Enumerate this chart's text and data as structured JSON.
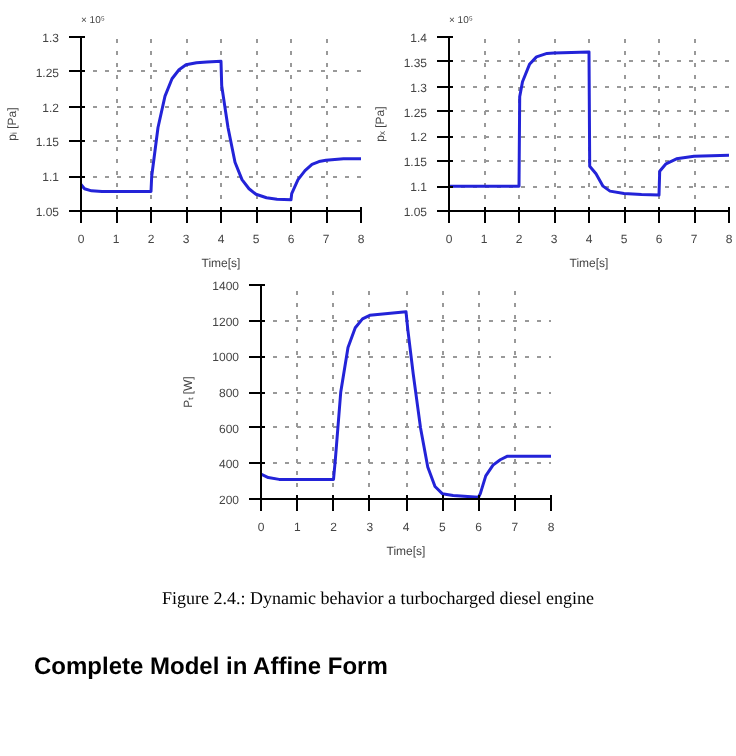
{
  "chart_data": [
    {
      "type": "line",
      "xlabel": "Time[s]",
      "ylabel": "pᵢ [Pa]",
      "annotations": [
        "× 10⁵"
      ],
      "grid": true,
      "xlim": [
        0,
        8
      ],
      "xticks": [
        0,
        1,
        2,
        3,
        4,
        5,
        6,
        7,
        8
      ],
      "ylim": [
        1.05,
        1.3
      ],
      "yticks": [
        1.05,
        1.1,
        1.15,
        1.2,
        1.25,
        1.3
      ],
      "series": [
        {
          "color": "#2323d8",
          "x": [
            0,
            0.1,
            0.3,
            0.6,
            1,
            2,
            2.02,
            2.2,
            2.4,
            2.6,
            2.8,
            3,
            3.3,
            3.6,
            4,
            4.02,
            4.2,
            4.4,
            4.6,
            4.8,
            5,
            5.3,
            5.6,
            6,
            6.02,
            6.2,
            6.4,
            6.6,
            6.8,
            7,
            7.5,
            8
          ],
          "values": [
            1.088,
            1.082,
            1.079,
            1.078,
            1.078,
            1.078,
            1.1,
            1.17,
            1.215,
            1.24,
            1.253,
            1.26,
            1.263,
            1.264,
            1.265,
            1.23,
            1.17,
            1.12,
            1.095,
            1.082,
            1.074,
            1.069,
            1.067,
            1.066,
            1.075,
            1.095,
            1.108,
            1.117,
            1.121,
            1.123,
            1.125,
            1.125
          ]
        }
      ]
    },
    {
      "type": "line",
      "xlabel": "Time[s]",
      "ylabel": "pₓ [Pa]",
      "annotations": [
        "× 10⁵"
      ],
      "grid": true,
      "xlim": [
        0,
        8
      ],
      "xticks": [
        0,
        1,
        2,
        3,
        4,
        5,
        6,
        7,
        8
      ],
      "ylim": [
        1.05,
        1.4
      ],
      "yticks": [
        1.05,
        1.1,
        1.15,
        1.2,
        1.25,
        1.3,
        1.35,
        1.4
      ],
      "series": [
        {
          "color": "#2323d8",
          "x": [
            0,
            2,
            2.02,
            2.1,
            2.3,
            2.5,
            2.8,
            3,
            4,
            4.02,
            4.2,
            4.4,
            4.6,
            5,
            5.5,
            6,
            6.02,
            6.2,
            6.5,
            7,
            8
          ],
          "values": [
            1.1,
            1.1,
            1.28,
            1.31,
            1.345,
            1.36,
            1.367,
            1.368,
            1.37,
            1.14,
            1.125,
            1.1,
            1.09,
            1.085,
            1.083,
            1.082,
            1.13,
            1.145,
            1.155,
            1.16,
            1.162
          ]
        }
      ]
    },
    {
      "type": "line",
      "xlabel": "Time[s]",
      "ylabel": "Pₜ [W]",
      "annotations": [
        "Figure 2.4.: Dynamic behavior a turbocharged diesel engine",
        "Complete Model in Affine Form"
      ],
      "grid": true,
      "xlim": [
        0,
        8
      ],
      "xticks": [
        0,
        1,
        2,
        3,
        4,
        5,
        6,
        7,
        8
      ],
      "ylim": [
        200,
        1400
      ],
      "yticks": [
        200,
        400,
        600,
        800,
        1000,
        1200,
        1400
      ],
      "series": [
        {
          "color": "#2323d8",
          "x": [
            0,
            0.2,
            0.5,
            1,
            2,
            2.05,
            2.2,
            2.4,
            2.6,
            2.8,
            3,
            3.5,
            4,
            4.05,
            4.2,
            4.4,
            4.6,
            4.8,
            5,
            5.3,
            6,
            6.05,
            6.2,
            6.4,
            6.6,
            6.8,
            7,
            8
          ],
          "values": [
            340,
            320,
            310,
            310,
            310,
            420,
            800,
            1050,
            1160,
            1210,
            1230,
            1240,
            1250,
            1150,
            900,
            600,
            380,
            270,
            230,
            220,
            210,
            230,
            330,
            390,
            420,
            440,
            440,
            440
          ]
        }
      ]
    }
  ]
}
